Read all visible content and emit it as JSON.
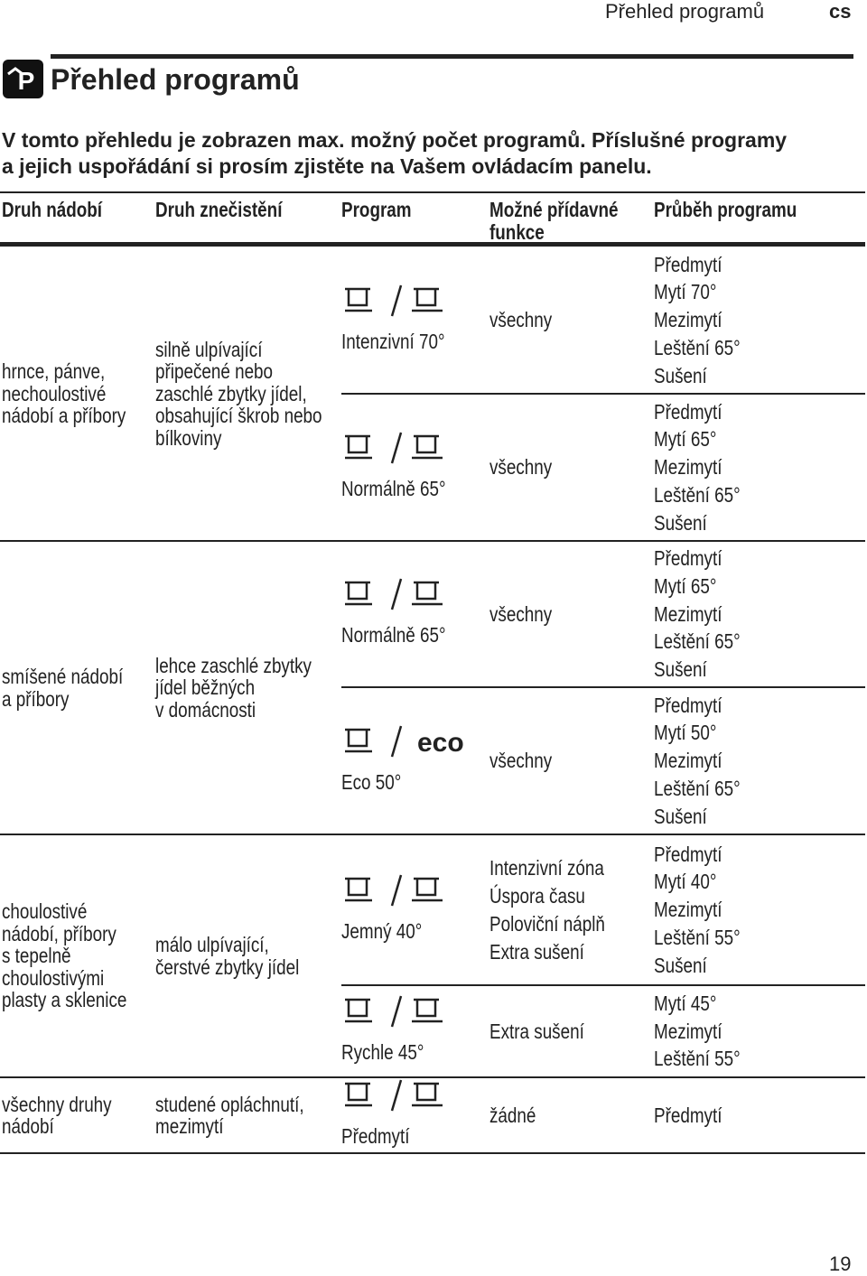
{
  "header": {
    "section": "Přehled programů",
    "lang": "cs"
  },
  "title": "Přehled programů",
  "intro": [
    "V tomto přehledu je zobrazen max. možný počet programů. Příslušné programy",
    "a jejich uspořádání si prosím zjistěte na Vašem ovládacím panelu."
  ],
  "table": {
    "headers": [
      [
        "Druh nádobí"
      ],
      [
        "Druh znečistění"
      ],
      [
        "Program"
      ],
      [
        "Možné přídavné",
        "funkce"
      ],
      [
        "Průběh programu"
      ]
    ],
    "groups": [
      {
        "dishes": [
          "hrnce, pánve,",
          "nechoulostivé",
          "nádobí a příbory"
        ],
        "soil": [
          "silně ulpívající",
          "připečené nebo",
          "zaschlé zbytky jídel,",
          "obsahující škrob nebo",
          "bílkoviny"
        ],
        "programs": [
          {
            "name": "Intenzivní 70°",
            "functions": [
              "všechny"
            ],
            "steps": [
              "Předmytí",
              "Mytí 70°",
              "Mezimytí",
              "Leštění 65°",
              "Sušení"
            ]
          },
          {
            "name": "Normálně 65°",
            "functions": [
              "všechny"
            ],
            "steps": [
              "Předmytí",
              "Mytí 65°",
              "Mezimytí",
              "Leštění 65°",
              "Sušení"
            ]
          }
        ]
      },
      {
        "dishes": [
          "smíšené nádobí",
          "a příbory"
        ],
        "soil": [
          "lehce zaschlé zbytky",
          "jídel běžných",
          "v domácnosti"
        ],
        "programs": [
          {
            "name": "Normálně 65°",
            "functions": [
              "všechny"
            ],
            "steps": [
              "Předmytí",
              "Mytí 65°",
              "Mezimytí",
              "Leštění 65°",
              "Sušení"
            ]
          },
          {
            "name": "Eco 50°",
            "icon_label": "eco",
            "functions": [
              "všechny"
            ],
            "steps": [
              "Předmytí",
              "Mytí 50°",
              "Mezimytí",
              "Leštění 65°",
              "Sušení"
            ]
          }
        ]
      },
      {
        "dishes": [
          "choulostivé",
          "nádobí, příbory",
          "s tepelně",
          "choulostivými",
          "plasty a sklenice"
        ],
        "soil": [
          "málo ulpívající,",
          "čerstvé zbytky jídel"
        ],
        "programs": [
          {
            "name": "Jemný 40°",
            "functions": [
              "Intenzivní zóna",
              "Úspora času",
              "Poloviční náplň",
              "Extra sušení"
            ],
            "steps": [
              "Předmytí",
              "Mytí 40°",
              "Mezimytí",
              "Leštění 55°",
              "Sušení"
            ]
          },
          {
            "name": "Rychle 45°",
            "functions": [
              "Extra sušení"
            ],
            "steps": [
              "Mytí 45°",
              "Mezimytí",
              "Leštění 55°"
            ]
          }
        ]
      },
      {
        "dishes": [
          "všechny druhy",
          "nádobí"
        ],
        "soil": [
          "studené opláchnutí,",
          "mezimytí"
        ],
        "programs": [
          {
            "name": "Předmytí",
            "functions": [
              "žádné"
            ],
            "steps": [
              "Předmytí"
            ]
          }
        ]
      }
    ]
  },
  "page_number": "19"
}
